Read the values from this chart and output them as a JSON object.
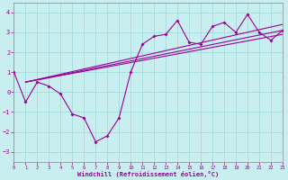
{
  "xlabel": "Windchill (Refroidissement éolien,°C)",
  "bg_color": "#c8eef0",
  "grid_color": "#aadddd",
  "line_color": "#990099",
  "xlim": [
    0,
    23
  ],
  "ylim": [
    -3.5,
    4.5
  ],
  "xticks": [
    0,
    1,
    2,
    3,
    4,
    5,
    6,
    7,
    8,
    9,
    10,
    11,
    12,
    13,
    14,
    15,
    16,
    17,
    18,
    19,
    20,
    21,
    22,
    23
  ],
  "yticks": [
    -3,
    -2,
    -1,
    0,
    1,
    2,
    3,
    4
  ],
  "zigzag_x": [
    0,
    1,
    2,
    3,
    4,
    5,
    6,
    7,
    8,
    9,
    10,
    11,
    12,
    13,
    14,
    15,
    16,
    17,
    18,
    19,
    20,
    21,
    22,
    23
  ],
  "zigzag_y": [
    1.0,
    -0.5,
    0.5,
    0.3,
    -0.1,
    -1.1,
    -1.3,
    -2.5,
    -2.2,
    -1.3,
    1.0,
    2.4,
    2.8,
    2.9,
    3.6,
    2.5,
    2.4,
    3.3,
    3.5,
    3.0,
    3.9,
    3.0,
    2.6,
    3.1
  ],
  "fan_lines": [
    {
      "x": [
        1,
        23
      ],
      "y": [
        0.5,
        2.9
      ]
    },
    {
      "x": [
        1,
        23
      ],
      "y": [
        0.5,
        3.1
      ]
    },
    {
      "x": [
        1,
        23
      ],
      "y": [
        0.5,
        3.4
      ]
    }
  ]
}
